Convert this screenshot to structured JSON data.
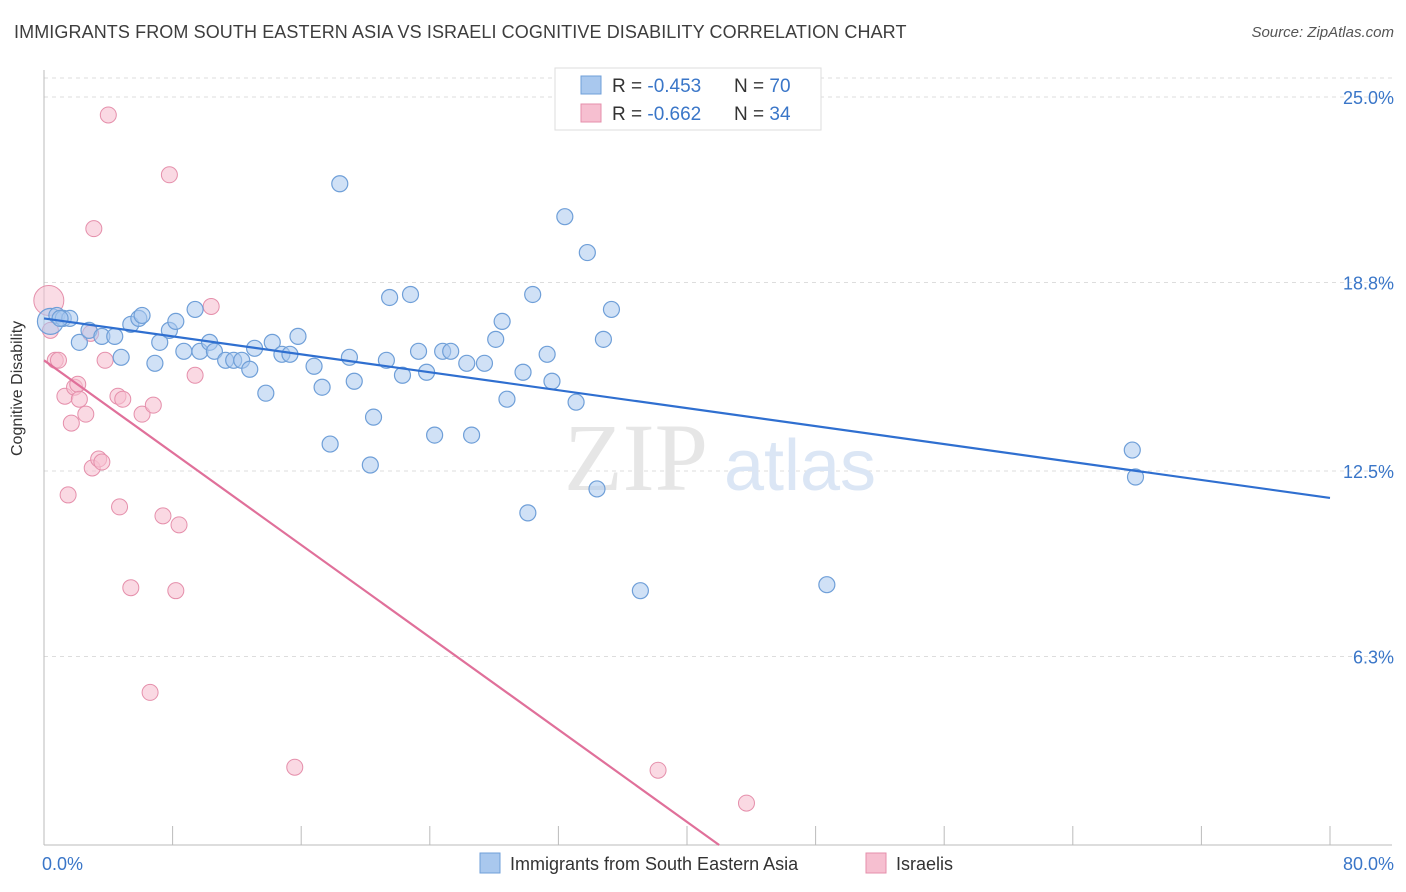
{
  "title": "IMMIGRANTS FROM SOUTH EASTERN ASIA VS ISRAELI COGNITIVE DISABILITY CORRELATION CHART",
  "source": "Source: ZipAtlas.com",
  "watermark": {
    "zip": "ZIP",
    "atlas": "atlas"
  },
  "colors": {
    "blue_fill": "#a9c8ee",
    "blue_stroke": "#6f9fd8",
    "blue_line": "#2f6fd0",
    "pink_fill": "#f6bfd0",
    "pink_stroke": "#e58fab",
    "pink_line": "#e0709a",
    "axis_text": "#3a76c8",
    "grid": "#dddddd"
  },
  "legend": {
    "rows": [
      {
        "r_label": "R = ",
        "r_value": "-0.453",
        "n_label": "N = ",
        "n_value": "70"
      },
      {
        "r_label": "R = ",
        "r_value": "-0.662",
        "n_label": "N = ",
        "n_value": "34"
      }
    ]
  },
  "bottom_legend": [
    "Immigrants from South Eastern Asia",
    "Israelis"
  ],
  "chart_data": {
    "type": "scatter",
    "title": "IMMIGRANTS FROM SOUTH EASTERN ASIA VS ISRAELI COGNITIVE DISABILITY CORRELATION CHART",
    "xlabel": "",
    "ylabel": "Cognitive Disability",
    "xlim": [
      0,
      80
    ],
    "ylim": [
      0,
      25.0
    ],
    "x_tick_labels": [
      "0.0%",
      "80.0%"
    ],
    "y_ticks": [
      6.3,
      12.5,
      18.8,
      25.0
    ],
    "y_tick_labels": [
      "6.3%",
      "12.5%",
      "18.8%",
      "25.0%"
    ],
    "grid": true,
    "legend_position": "top-center",
    "series": [
      {
        "name": "Immigrants from South Eastern Asia",
        "color": "#a9c8ee",
        "trend": {
          "x": [
            0,
            80
          ],
          "y": [
            17.6,
            11.6
          ]
        },
        "points": [
          [
            0.4,
            17.5
          ],
          [
            0.8,
            17.7
          ],
          [
            1.2,
            17.6
          ],
          [
            1.6,
            17.6
          ],
          [
            2.2,
            16.8
          ],
          [
            2.8,
            17.2
          ],
          [
            3.6,
            17.0
          ],
          [
            4.4,
            17.0
          ],
          [
            4.8,
            16.3
          ],
          [
            5.4,
            17.4
          ],
          [
            5.9,
            17.6
          ],
          [
            6.1,
            17.7
          ],
          [
            6.9,
            16.1
          ],
          [
            7.2,
            16.8
          ],
          [
            7.8,
            17.2
          ],
          [
            8.2,
            17.5
          ],
          [
            8.7,
            16.5
          ],
          [
            9.4,
            17.9
          ],
          [
            9.7,
            16.5
          ],
          [
            10.3,
            16.8
          ],
          [
            10.6,
            16.5
          ],
          [
            11.3,
            16.2
          ],
          [
            11.8,
            16.2
          ],
          [
            12.3,
            16.2
          ],
          [
            12.8,
            15.9
          ],
          [
            13.1,
            16.6
          ],
          [
            13.8,
            15.1
          ],
          [
            14.2,
            16.8
          ],
          [
            14.8,
            16.4
          ],
          [
            15.3,
            16.4
          ],
          [
            15.8,
            17.0
          ],
          [
            16.8,
            16.0
          ],
          [
            17.3,
            15.3
          ],
          [
            17.8,
            13.4
          ],
          [
            18.4,
            22.1
          ],
          [
            19.0,
            16.3
          ],
          [
            19.3,
            15.5
          ],
          [
            20.3,
            12.7
          ],
          [
            20.5,
            14.3
          ],
          [
            21.3,
            16.2
          ],
          [
            21.5,
            18.3
          ],
          [
            22.3,
            15.7
          ],
          [
            22.8,
            18.4
          ],
          [
            23.3,
            16.5
          ],
          [
            23.8,
            15.8
          ],
          [
            24.3,
            13.7
          ],
          [
            24.8,
            16.5
          ],
          [
            25.3,
            16.5
          ],
          [
            26.3,
            16.1
          ],
          [
            26.6,
            13.7
          ],
          [
            27.4,
            16.1
          ],
          [
            28.1,
            16.9
          ],
          [
            28.5,
            17.5
          ],
          [
            28.8,
            14.9
          ],
          [
            29.8,
            15.8
          ],
          [
            30.1,
            11.1
          ],
          [
            30.4,
            18.4
          ],
          [
            31.3,
            16.4
          ],
          [
            31.6,
            15.5
          ],
          [
            32.4,
            21.0
          ],
          [
            33.1,
            14.8
          ],
          [
            33.8,
            19.8
          ],
          [
            34.4,
            11.9
          ],
          [
            34.8,
            16.9
          ],
          [
            35.3,
            17.9
          ],
          [
            37.1,
            8.5
          ],
          [
            48.7,
            8.7
          ],
          [
            67.7,
            13.2
          ],
          [
            67.9,
            12.3
          ],
          [
            1.0,
            17.6
          ]
        ]
      },
      {
        "name": "Israelis",
        "color": "#f6bfd0",
        "trend": {
          "x": [
            0,
            42
          ],
          "y": [
            16.2,
            0.0
          ]
        },
        "points": [
          [
            0.3,
            18.2
          ],
          [
            0.4,
            17.2
          ],
          [
            0.7,
            16.2
          ],
          [
            0.9,
            16.2
          ],
          [
            1.3,
            15.0
          ],
          [
            1.5,
            11.7
          ],
          [
            1.7,
            14.1
          ],
          [
            1.9,
            15.3
          ],
          [
            2.1,
            15.4
          ],
          [
            2.2,
            14.9
          ],
          [
            2.6,
            14.4
          ],
          [
            2.9,
            17.1
          ],
          [
            3.0,
            12.6
          ],
          [
            3.1,
            20.6
          ],
          [
            3.4,
            12.9
          ],
          [
            3.6,
            12.8
          ],
          [
            3.8,
            16.2
          ],
          [
            4.0,
            24.4
          ],
          [
            4.6,
            15.0
          ],
          [
            4.7,
            11.3
          ],
          [
            4.9,
            14.9
          ],
          [
            5.4,
            8.6
          ],
          [
            6.1,
            14.4
          ],
          [
            6.6,
            5.1
          ],
          [
            6.8,
            14.7
          ],
          [
            7.4,
            11.0
          ],
          [
            7.8,
            22.4
          ],
          [
            8.2,
            8.5
          ],
          [
            8.4,
            10.7
          ],
          [
            9.4,
            15.7
          ],
          [
            10.4,
            18.0
          ],
          [
            15.6,
            2.6
          ],
          [
            38.2,
            2.5
          ],
          [
            43.7,
            1.4
          ]
        ]
      }
    ]
  }
}
